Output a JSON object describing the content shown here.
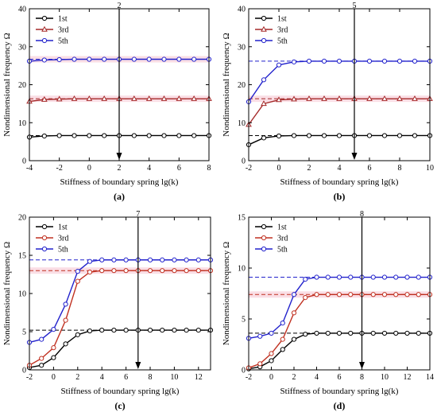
{
  "chart_data": [
    {
      "type": "line",
      "panel_label": "(a)",
      "arrow_label": "2",
      "arrow_x": 2,
      "xlabel": "Stiffness of boundary spring lg(k)",
      "ylabel": "Nondimensional frequency Ω",
      "xlim": [
        -4,
        8
      ],
      "ylim": [
        0,
        40
      ],
      "xticks": [
        -4,
        -2,
        0,
        2,
        4,
        6,
        8
      ],
      "yticks": [
        0,
        10,
        20,
        30,
        40
      ],
      "legend_position": "top-left",
      "grid": false,
      "x": [
        -4,
        -3,
        -2,
        -1,
        0,
        1,
        2,
        3,
        4,
        5,
        6,
        7,
        8
      ],
      "series": [
        {
          "name": "1st",
          "color": "#000000",
          "marker": "circle",
          "reference": 6.6,
          "band": false,
          "values": [
            6.2,
            6.5,
            6.6,
            6.6,
            6.6,
            6.6,
            6.6,
            6.6,
            6.6,
            6.6,
            6.6,
            6.6,
            6.6
          ]
        },
        {
          "name": "3rd",
          "color": "#a52a2a",
          "marker": "triangle",
          "reference": 16.3,
          "band": true,
          "values": [
            15.6,
            16.1,
            16.2,
            16.3,
            16.3,
            16.3,
            16.3,
            16.3,
            16.3,
            16.3,
            16.3,
            16.3,
            16.3
          ]
        },
        {
          "name": "5th",
          "color": "#2222cc",
          "marker": "circle",
          "reference": 26.7,
          "band": true,
          "values": [
            26.2,
            26.5,
            26.6,
            26.7,
            26.7,
            26.7,
            26.7,
            26.7,
            26.7,
            26.7,
            26.7,
            26.7,
            26.7
          ]
        }
      ]
    },
    {
      "type": "line",
      "panel_label": "(b)",
      "arrow_label": "5",
      "arrow_x": 5,
      "xlabel": "Stiffness of boundary spring lg(k)",
      "ylabel": "Nondimensional frequency Ω",
      "xlim": [
        -2,
        10
      ],
      "ylim": [
        0,
        40
      ],
      "xticks": [
        -2,
        0,
        2,
        4,
        6,
        8,
        10
      ],
      "yticks": [
        0,
        10,
        20,
        30,
        40
      ],
      "legend_position": "top-left",
      "grid": false,
      "x": [
        -2,
        -1,
        0,
        1,
        2,
        3,
        4,
        5,
        6,
        7,
        8,
        9,
        10
      ],
      "series": [
        {
          "name": "1st",
          "color": "#000000",
          "marker": "circle",
          "reference": 6.6,
          "band": false,
          "values": [
            4.2,
            6.0,
            6.5,
            6.6,
            6.6,
            6.6,
            6.6,
            6.6,
            6.6,
            6.6,
            6.6,
            6.6,
            6.6
          ]
        },
        {
          "name": "3rd",
          "color": "#a52a2a",
          "marker": "triangle",
          "reference": 16.3,
          "band": true,
          "values": [
            9.5,
            15.0,
            16.0,
            16.2,
            16.3,
            16.3,
            16.3,
            16.3,
            16.3,
            16.3,
            16.3,
            16.3,
            16.3
          ]
        },
        {
          "name": "5th",
          "color": "#2222cc",
          "marker": "circle",
          "reference": 26.2,
          "band": false,
          "values": [
            15.5,
            21.3,
            25.2,
            26.0,
            26.2,
            26.2,
            26.2,
            26.2,
            26.2,
            26.2,
            26.2,
            26.2,
            26.2
          ]
        }
      ]
    },
    {
      "type": "line",
      "panel_label": "(c)",
      "arrow_label": "7",
      "arrow_x": 7,
      "xlabel": "Stiffness of boundary spring lg(k)",
      "ylabel": "Nondimensional frequency Ω",
      "xlim": [
        -2,
        13
      ],
      "ylim": [
        0,
        20
      ],
      "xticks": [
        -2,
        0,
        2,
        4,
        6,
        8,
        10,
        12
      ],
      "yticks": [
        0,
        5,
        10,
        15,
        20
      ],
      "legend_position": "top-left",
      "grid": false,
      "x": [
        -2,
        -1,
        0,
        1,
        2,
        3,
        4,
        5,
        6,
        7,
        8,
        9,
        10,
        11,
        12,
        13
      ],
      "series": [
        {
          "name": "1st",
          "color": "#000000",
          "marker": "circle",
          "reference": 5.2,
          "band": false,
          "values": [
            0.3,
            0.6,
            1.6,
            3.4,
            4.6,
            5.1,
            5.2,
            5.2,
            5.2,
            5.2,
            5.2,
            5.2,
            5.2,
            5.2,
            5.2,
            5.2
          ]
        },
        {
          "name": "3rd",
          "color": "#c03020",
          "marker": "circle",
          "reference": 13.0,
          "band": true,
          "values": [
            0.6,
            1.5,
            2.9,
            6.5,
            11.6,
            12.8,
            13.0,
            13.0,
            13.0,
            13.0,
            13.0,
            13.0,
            13.0,
            13.0,
            13.0,
            13.0
          ]
        },
        {
          "name": "5th",
          "color": "#2222cc",
          "marker": "circle",
          "reference": 14.4,
          "band": false,
          "values": [
            3.6,
            4.0,
            5.3,
            8.6,
            12.9,
            14.2,
            14.4,
            14.4,
            14.4,
            14.4,
            14.4,
            14.4,
            14.4,
            14.4,
            14.4,
            14.4
          ]
        }
      ]
    },
    {
      "type": "line",
      "panel_label": "(d)",
      "arrow_label": "8",
      "arrow_x": 8,
      "xlabel": "Stiffness of boundary spring lg(k)",
      "ylabel": "Nondimensional frequency Ω",
      "xlim": [
        -2,
        14
      ],
      "ylim": [
        0,
        15
      ],
      "xticks": [
        -2,
        0,
        2,
        4,
        6,
        8,
        10,
        12,
        14
      ],
      "yticks": [
        0,
        5,
        10,
        15
      ],
      "legend_position": "top-left",
      "grid": false,
      "x": [
        -2,
        -1,
        0,
        1,
        2,
        3,
        4,
        5,
        6,
        7,
        8,
        9,
        10,
        11,
        12,
        13,
        14
      ],
      "series": [
        {
          "name": "1st",
          "color": "#000000",
          "marker": "circle",
          "reference": 3.6,
          "band": false,
          "values": [
            0.1,
            0.3,
            0.9,
            2.0,
            3.0,
            3.5,
            3.6,
            3.6,
            3.6,
            3.6,
            3.6,
            3.6,
            3.6,
            3.6,
            3.6,
            3.6,
            3.6
          ]
        },
        {
          "name": "3rd",
          "color": "#c03020",
          "marker": "circle",
          "reference": 7.4,
          "band": true,
          "values": [
            0.2,
            0.6,
            1.6,
            3.0,
            5.6,
            7.1,
            7.4,
            7.4,
            7.4,
            7.4,
            7.4,
            7.4,
            7.4,
            7.4,
            7.4,
            7.4,
            7.4
          ]
        },
        {
          "name": "5th",
          "color": "#2222cc",
          "marker": "circle",
          "reference": 9.1,
          "band": false,
          "values": [
            3.1,
            3.3,
            3.6,
            4.6,
            7.4,
            8.9,
            9.1,
            9.1,
            9.1,
            9.1,
            9.1,
            9.1,
            9.1,
            9.1,
            9.1,
            9.1,
            9.1
          ]
        }
      ]
    }
  ]
}
